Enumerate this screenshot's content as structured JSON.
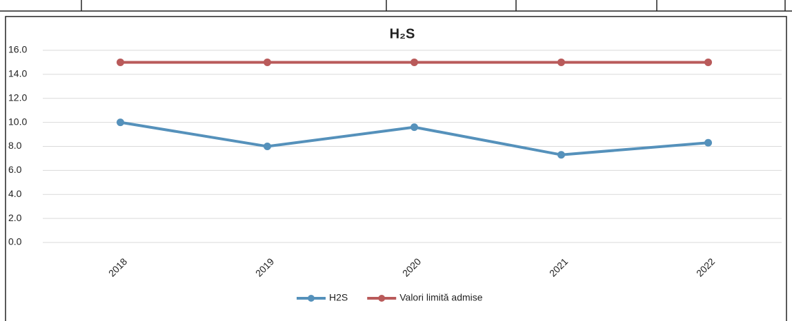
{
  "chart_data": {
    "type": "line",
    "title": "H₂S",
    "categories": [
      "2018",
      "2019",
      "2020",
      "2021",
      "2022"
    ],
    "series": [
      {
        "name": "H2S",
        "color": "#5591bb",
        "values": [
          10.0,
          8.0,
          9.6,
          7.3,
          8.3
        ]
      },
      {
        "name": "Valori limită admise",
        "color": "#b95a5a",
        "values": [
          15,
          15,
          15,
          15,
          15
        ]
      }
    ],
    "ylim": [
      0,
      16
    ],
    "yticks": [
      {
        "value": 0,
        "label": "0.0"
      },
      {
        "value": 2,
        "label": "2.0"
      },
      {
        "value": 4,
        "label": "4.0"
      },
      {
        "value": 6,
        "label": "6.0"
      },
      {
        "value": 8,
        "label": "8.0"
      },
      {
        "value": 10,
        "label": "10.0"
      },
      {
        "value": 12,
        "label": "12.0"
      },
      {
        "value": 14,
        "label": "14.0"
      },
      {
        "value": 16,
        "label": "16.0"
      }
    ],
    "grid": true,
    "legend": "bottom"
  }
}
